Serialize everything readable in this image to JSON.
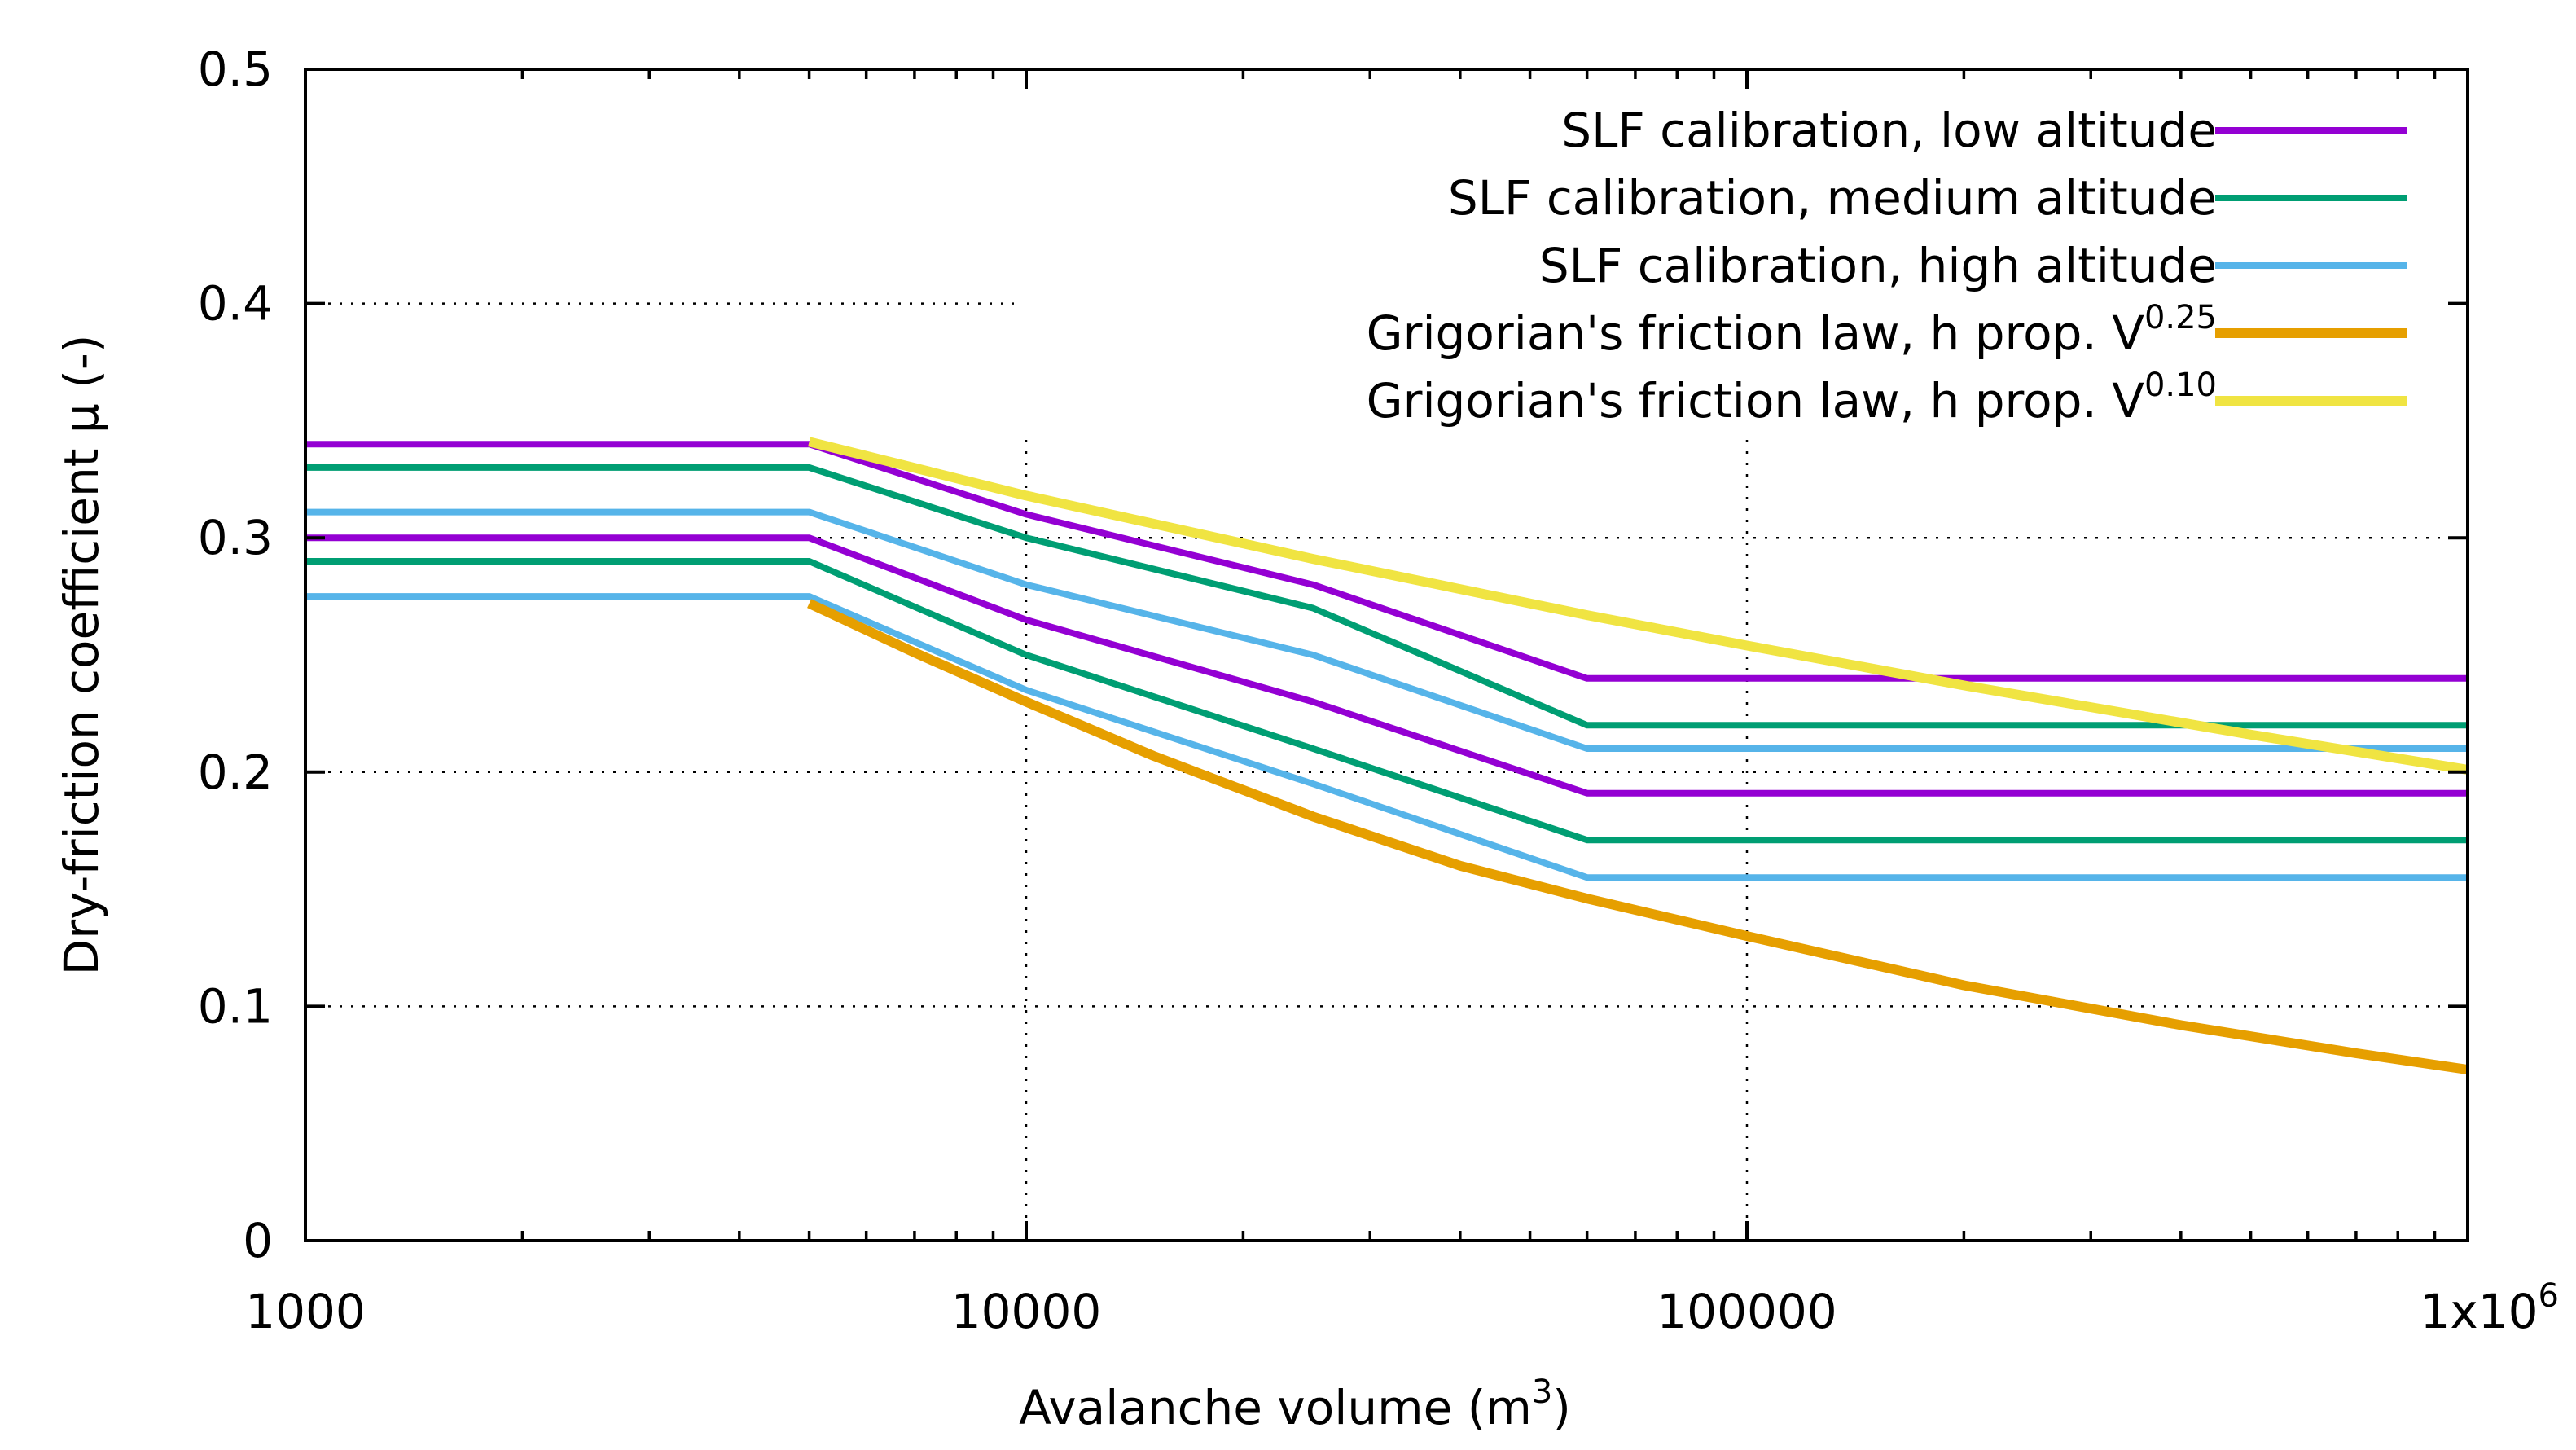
{
  "chart_data": {
    "type": "line",
    "title": "",
    "xlabel": "Avalanche volume (m",
    "xlabel_sup": "3",
    "xlabel_tail": ")",
    "ylabel": "Dry-friction coefficient μ (-)",
    "xscale": "log",
    "xlim": [
      1000,
      1000000
    ],
    "ylim": [
      0,
      0.5
    ],
    "grid": true,
    "legend_position": "top-right",
    "x_ticks": [
      {
        "value": 1000,
        "label": "1000"
      },
      {
        "value": 10000,
        "label": "10000"
      },
      {
        "value": 100000,
        "label": "100000"
      },
      {
        "value": 1000000,
        "label": "1x10",
        "sup": "6"
      }
    ],
    "y_ticks": [
      {
        "value": 0,
        "label": "0"
      },
      {
        "value": 0.1,
        "label": "0.1"
      },
      {
        "value": 0.2,
        "label": "0.2"
      },
      {
        "value": 0.3,
        "label": "0.3"
      },
      {
        "value": 0.4,
        "label": "0.4"
      },
      {
        "value": 0.5,
        "label": "0.5"
      }
    ],
    "series": [
      {
        "name": "SLF calibration, low altitude",
        "color": "#9400d3",
        "group": "slf",
        "x": [
          1000,
          5000,
          10000,
          25000,
          60000,
          1000000
        ],
        "values": [
          0.34,
          0.34,
          0.31,
          0.28,
          0.24,
          0.24
        ]
      },
      {
        "name": "SLF calibration, low altitude",
        "color": "#9400d3",
        "group": "slf",
        "x": [
          1000,
          5000,
          10000,
          25000,
          60000,
          1000000
        ],
        "values": [
          0.3,
          0.3,
          0.265,
          0.23,
          0.191,
          0.191
        ]
      },
      {
        "name": "SLF calibration, medium altitude",
        "color": "#009e73",
        "group": "slf",
        "x": [
          1000,
          5000,
          10000,
          25000,
          60000,
          1000000
        ],
        "values": [
          0.33,
          0.33,
          0.3,
          0.27,
          0.22,
          0.22
        ]
      },
      {
        "name": "SLF calibration, medium altitude",
        "color": "#009e73",
        "group": "slf",
        "x": [
          1000,
          5000,
          10000,
          25000,
          60000,
          1000000
        ],
        "values": [
          0.29,
          0.29,
          0.25,
          0.21,
          0.171,
          0.171
        ]
      },
      {
        "name": "SLF calibration, high altitude",
        "color": "#56b4e9",
        "group": "slf",
        "x": [
          1000,
          5000,
          10000,
          25000,
          60000,
          1000000
        ],
        "values": [
          0.311,
          0.311,
          0.28,
          0.25,
          0.21,
          0.21
        ]
      },
      {
        "name": "SLF calibration, high altitude",
        "color": "#56b4e9",
        "group": "slf",
        "x": [
          1000,
          5000,
          10000,
          25000,
          60000,
          1000000
        ],
        "values": [
          0.275,
          0.275,
          0.235,
          0.195,
          0.155,
          0.155
        ]
      },
      {
        "name": "Grigorian's friction law, h prop. V^0.25",
        "color": "#e69f00",
        "group": "grig",
        "x": [
          5000,
          7000,
          10000,
          15000,
          25000,
          40000,
          60000,
          100000,
          200000,
          400000,
          700000,
          1000000
        ],
        "values": [
          0.272,
          0.251,
          0.23,
          0.207,
          0.181,
          0.16,
          0.146,
          0.13,
          0.109,
          0.092,
          0.08,
          0.073
        ]
      },
      {
        "name": "Grigorian's friction law, h prop. V^0.10",
        "color": "#f0e442",
        "group": "grig",
        "x": [
          5000,
          10000,
          25000,
          60000,
          100000,
          200000,
          500000,
          1000000
        ],
        "values": [
          0.341,
          0.318,
          0.291,
          0.267,
          0.254,
          0.237,
          0.216,
          0.201
        ]
      }
    ],
    "legend": [
      {
        "label": "SLF calibration, low altitude",
        "color": "#9400d3",
        "group": "slf"
      },
      {
        "label": "SLF calibration, medium altitude",
        "color": "#009e73",
        "group": "slf"
      },
      {
        "label": "SLF calibration, high altitude",
        "color": "#56b4e9",
        "group": "slf"
      },
      {
        "label": "Grigorian's friction law, h prop. V",
        "sup": "0.25",
        "color": "#e69f00",
        "group": "grig"
      },
      {
        "label": "Grigorian's friction law, h prop. V",
        "sup": "0.10",
        "color": "#f0e442",
        "group": "grig"
      }
    ]
  }
}
